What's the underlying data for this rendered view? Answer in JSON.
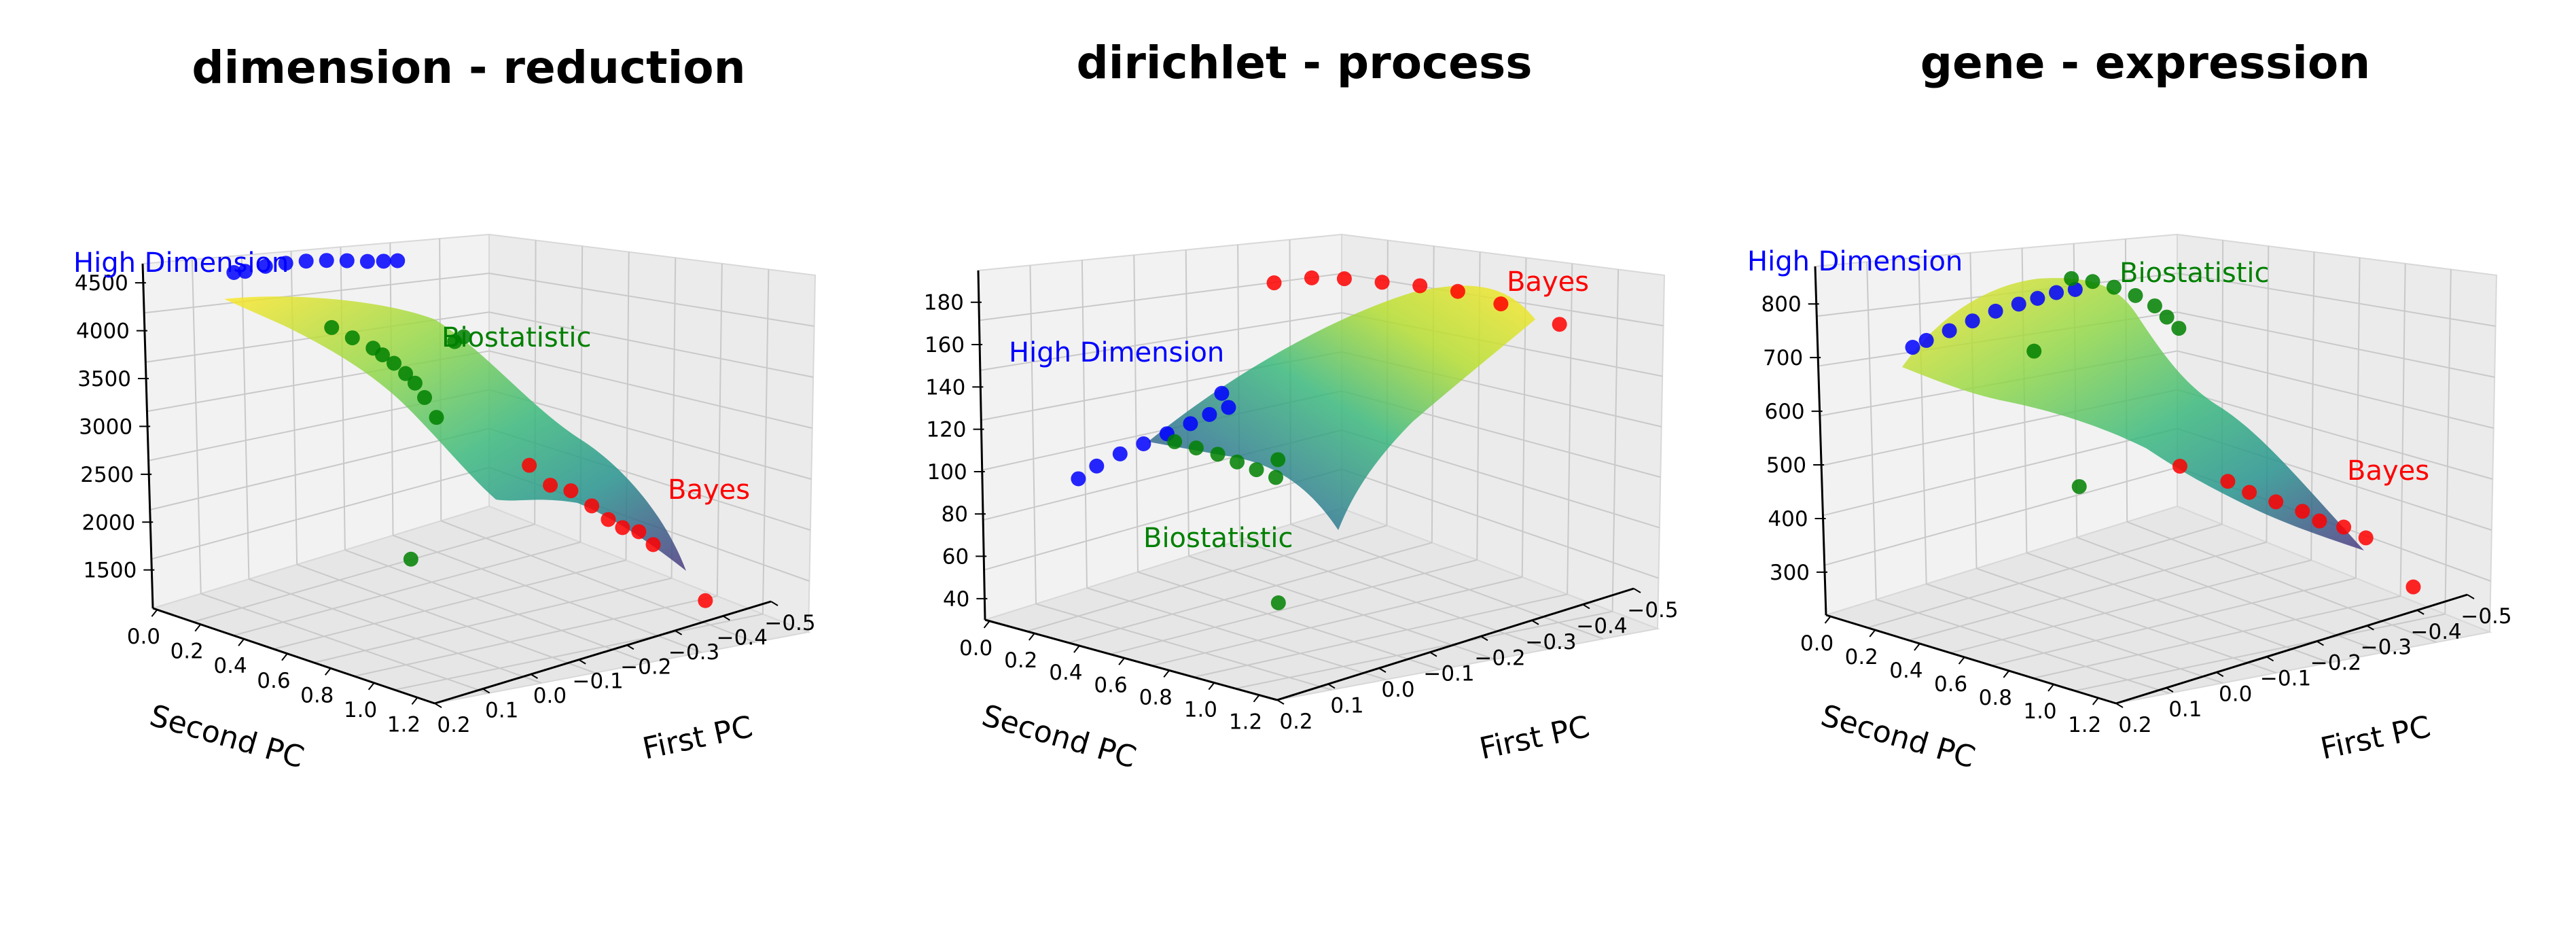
{
  "colors": {
    "high_dimension": "#0000ff",
    "biostatistic": "#008000",
    "bayes": "#ff0000",
    "surface_colormap": "viridis"
  },
  "chart_data": [
    {
      "type": "scatter3d+surface",
      "title": "dimension - reduction",
      "xlabel": "First PC",
      "ylabel": "Second PC",
      "zlabel": "",
      "x_ticks": [
        "0.2",
        "0.1",
        "0.0",
        "−0.1",
        "−0.2",
        "−0.3",
        "−0.4",
        "−0.5"
      ],
      "y_ticks": [
        "0.0",
        "0.2",
        "0.4",
        "0.6",
        "0.8",
        "1.0",
        "1.2"
      ],
      "z_ticks": [
        "1500",
        "2000",
        "2500",
        "3000",
        "3500",
        "4000",
        "4500"
      ],
      "annotations": [
        "High Dimension",
        "Biostatistic",
        "Bayes"
      ],
      "series": [
        {
          "name": "High Dimension",
          "points": [
            [
              0.03,
              0.02,
              4380
            ],
            [
              0.02,
              0.05,
              4400
            ],
            [
              0.0,
              0.1,
              4460
            ],
            [
              -0.02,
              0.15,
              4500
            ],
            [
              -0.04,
              0.2,
              4530
            ],
            [
              -0.06,
              0.25,
              4545
            ],
            [
              -0.08,
              0.3,
              4550
            ],
            [
              -0.1,
              0.35,
              4550
            ],
            [
              -0.12,
              0.38,
              4545
            ],
            [
              -0.14,
              0.4,
              4535
            ]
          ]
        },
        {
          "name": "Biostatistic",
          "points": [
            [
              0.0,
              0.4,
              4050
            ],
            [
              -0.02,
              0.45,
              3950
            ],
            [
              -0.04,
              0.5,
              3850
            ],
            [
              -0.05,
              0.52,
              3780
            ],
            [
              -0.06,
              0.55,
              3700
            ],
            [
              -0.07,
              0.58,
              3600
            ],
            [
              -0.08,
              0.6,
              3500
            ],
            [
              -0.09,
              0.62,
              3350
            ],
            [
              -0.1,
              0.65,
              3150
            ],
            [
              -0.12,
              0.7,
              3950
            ],
            [
              -0.13,
              0.72,
              4000
            ],
            [
              0.05,
              0.85,
              2050
            ]
          ]
        },
        {
          "name": "Bayes",
          "points": [
            [
              -0.2,
              0.85,
              2650
            ],
            [
              -0.22,
              0.9,
              2450
            ],
            [
              -0.24,
              0.95,
              2400
            ],
            [
              -0.26,
              1.0,
              2250
            ],
            [
              -0.28,
              1.03,
              2100
            ],
            [
              -0.3,
              1.05,
              2000
            ],
            [
              -0.32,
              1.08,
              1950
            ],
            [
              -0.34,
              1.1,
              1800
            ],
            [
              -0.4,
              1.2,
              1200
            ]
          ]
        }
      ]
    },
    {
      "type": "scatter3d+surface",
      "title": "dirichlet - process",
      "xlabel": "First PC",
      "ylabel": "Second PC",
      "zlabel": "",
      "x_ticks": [
        "0.2",
        "0.1",
        "0.0",
        "−0.1",
        "−0.2",
        "−0.3",
        "−0.4",
        "−0.5"
      ],
      "y_ticks": [
        "0.0",
        "0.2",
        "0.4",
        "0.6",
        "0.8",
        "1.0",
        "1.2"
      ],
      "z_ticks": [
        "40",
        "60",
        "80",
        "100",
        "120",
        "140",
        "160",
        "180"
      ],
      "annotations": [
        "High Dimension",
        "Biostatistic",
        "Bayes"
      ],
      "series": [
        {
          "name": "High Dimension",
          "points": [
            [
              0.03,
              0.02,
              85
            ],
            [
              0.02,
              0.08,
              92
            ],
            [
              0.0,
              0.14,
              98
            ],
            [
              -0.02,
              0.2,
              103
            ],
            [
              -0.04,
              0.26,
              108
            ],
            [
              -0.06,
              0.32,
              113
            ],
            [
              -0.08,
              0.36,
              117
            ],
            [
              -0.1,
              0.4,
              120
            ],
            [
              0.0,
              0.6,
              140
            ]
          ]
        },
        {
          "name": "Biostatistic",
          "points": [
            [
              0.05,
              0.5,
              118
            ],
            [
              0.03,
              0.55,
              115
            ],
            [
              0.01,
              0.6,
              112
            ],
            [
              -0.01,
              0.64,
              108
            ],
            [
              -0.03,
              0.68,
              104
            ],
            [
              -0.05,
              0.72,
              100
            ],
            [
              -0.02,
              0.8,
              113
            ],
            [
              0.05,
              0.95,
              55
            ]
          ]
        },
        {
          "name": "Bayes",
          "points": [
            [
              -0.15,
              0.5,
              178
            ],
            [
              -0.18,
              0.6,
              181
            ],
            [
              -0.2,
              0.7,
              182
            ],
            [
              -0.23,
              0.8,
              181
            ],
            [
              -0.26,
              0.9,
              180
            ],
            [
              -0.29,
              1.0,
              178
            ],
            [
              -0.33,
              1.1,
              172
            ],
            [
              -0.4,
              1.2,
              160
            ]
          ]
        }
      ]
    },
    {
      "type": "scatter3d+surface",
      "title": "gene - expression",
      "xlabel": "First PC",
      "ylabel": "Second PC",
      "zlabel": "",
      "x_ticks": [
        "0.2",
        "0.1",
        "0.0",
        "−0.1",
        "−0.2",
        "−0.3",
        "−0.4",
        "−0.5"
      ],
      "y_ticks": [
        "0.0",
        "0.2",
        "0.4",
        "0.6",
        "0.8",
        "1.0",
        "1.2"
      ],
      "z_ticks": [
        "300",
        "400",
        "500",
        "600",
        "700",
        "800"
      ],
      "annotations": [
        "High Dimension",
        "Biostatistic",
        "Bayes"
      ],
      "series": [
        {
          "name": "High Dimension",
          "points": [
            [
              0.03,
              0.02,
              675
            ],
            [
              0.02,
              0.06,
              690
            ],
            [
              0.0,
              0.12,
              710
            ],
            [
              -0.02,
              0.18,
              730
            ],
            [
              -0.04,
              0.24,
              750
            ],
            [
              -0.06,
              0.3,
              765
            ],
            [
              -0.08,
              0.34,
              775
            ],
            [
              -0.1,
              0.38,
              785
            ],
            [
              -0.12,
              0.42,
              790
            ]
          ]
        },
        {
          "name": "Biostatistic",
          "points": [
            [
              -0.1,
              0.45,
              820
            ],
            [
              -0.12,
              0.5,
              815
            ],
            [
              -0.14,
              0.55,
              805
            ],
            [
              -0.16,
              0.6,
              790
            ],
            [
              -0.18,
              0.64,
              770
            ],
            [
              -0.19,
              0.67,
              750
            ],
            [
              -0.2,
              0.7,
              730
            ],
            [
              0.0,
              0.5,
              720
            ],
            [
              0.05,
              0.8,
              520
            ]
          ]
        },
        {
          "name": "Bayes",
          "points": [
            [
              -0.15,
              0.8,
              500
            ],
            [
              -0.2,
              0.9,
              470
            ],
            [
              -0.22,
              0.95,
              450
            ],
            [
              -0.25,
              1.0,
              430
            ],
            [
              -0.28,
              1.05,
              410
            ],
            [
              -0.3,
              1.08,
              390
            ],
            [
              -0.33,
              1.12,
              375
            ],
            [
              -0.36,
              1.15,
              350
            ],
            [
              -0.42,
              1.22,
              250
            ]
          ]
        }
      ]
    }
  ]
}
